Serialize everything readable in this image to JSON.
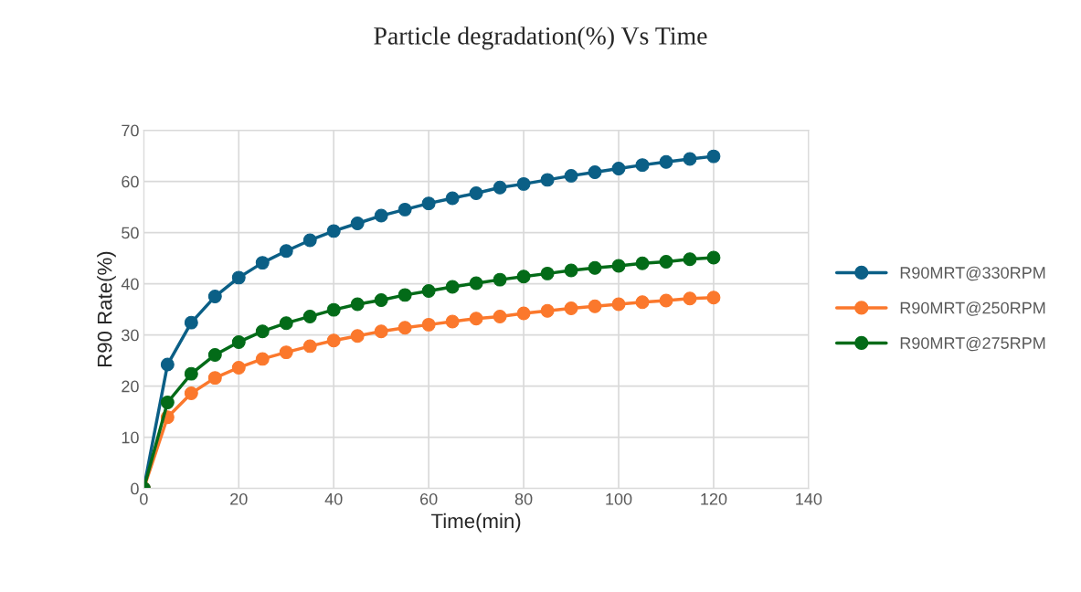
{
  "chart_data": {
    "type": "line",
    "title": "Particle degradation(%) Vs Time",
    "xlabel": "Time(min)",
    "ylabel": "R90 Rate(%)",
    "x": [
      0,
      5,
      10,
      15,
      20,
      25,
      30,
      35,
      40,
      45,
      50,
      55,
      60,
      65,
      70,
      75,
      80,
      85,
      90,
      95,
      100,
      105,
      110,
      115,
      120
    ],
    "series": [
      {
        "name": "R90MRT@330RPM",
        "color": "#0b5f86",
        "values": [
          0,
          24.2,
          32.4,
          37.5,
          41.2,
          44.1,
          46.4,
          48.5,
          50.3,
          51.8,
          53.3,
          54.5,
          55.7,
          56.7,
          57.7,
          58.8,
          59.5,
          60.3,
          61.1,
          61.8,
          62.5,
          63.2,
          63.8,
          64.4,
          64.9
        ]
      },
      {
        "name": "R90MRT@250RPM",
        "color": "#fb782c",
        "values": [
          0,
          13.9,
          18.6,
          21.6,
          23.6,
          25.3,
          26.6,
          27.8,
          28.9,
          29.8,
          30.7,
          31.4,
          32.0,
          32.6,
          33.2,
          33.6,
          34.2,
          34.7,
          35.2,
          35.6,
          36.0,
          36.4,
          36.7,
          37.1,
          37.3
        ]
      },
      {
        "name": "R90MRT@275RPM",
        "color": "#036b18",
        "values": [
          0,
          16.8,
          22.4,
          26.1,
          28.6,
          30.7,
          32.3,
          33.6,
          34.9,
          36.0,
          36.8,
          37.8,
          38.6,
          39.4,
          40.1,
          40.8,
          41.4,
          42.0,
          42.6,
          43.1,
          43.5,
          44.0,
          44.3,
          44.8,
          45.1
        ]
      }
    ],
    "xlim": [
      0,
      140
    ],
    "xticks": [
      0,
      20,
      40,
      60,
      80,
      100,
      120,
      140
    ],
    "ylim": [
      0,
      70
    ],
    "yticks": [
      0,
      10,
      20,
      30,
      40,
      50,
      60,
      70
    ],
    "grid": true,
    "legend": "right",
    "marker": "circle",
    "line_style": "solid"
  }
}
